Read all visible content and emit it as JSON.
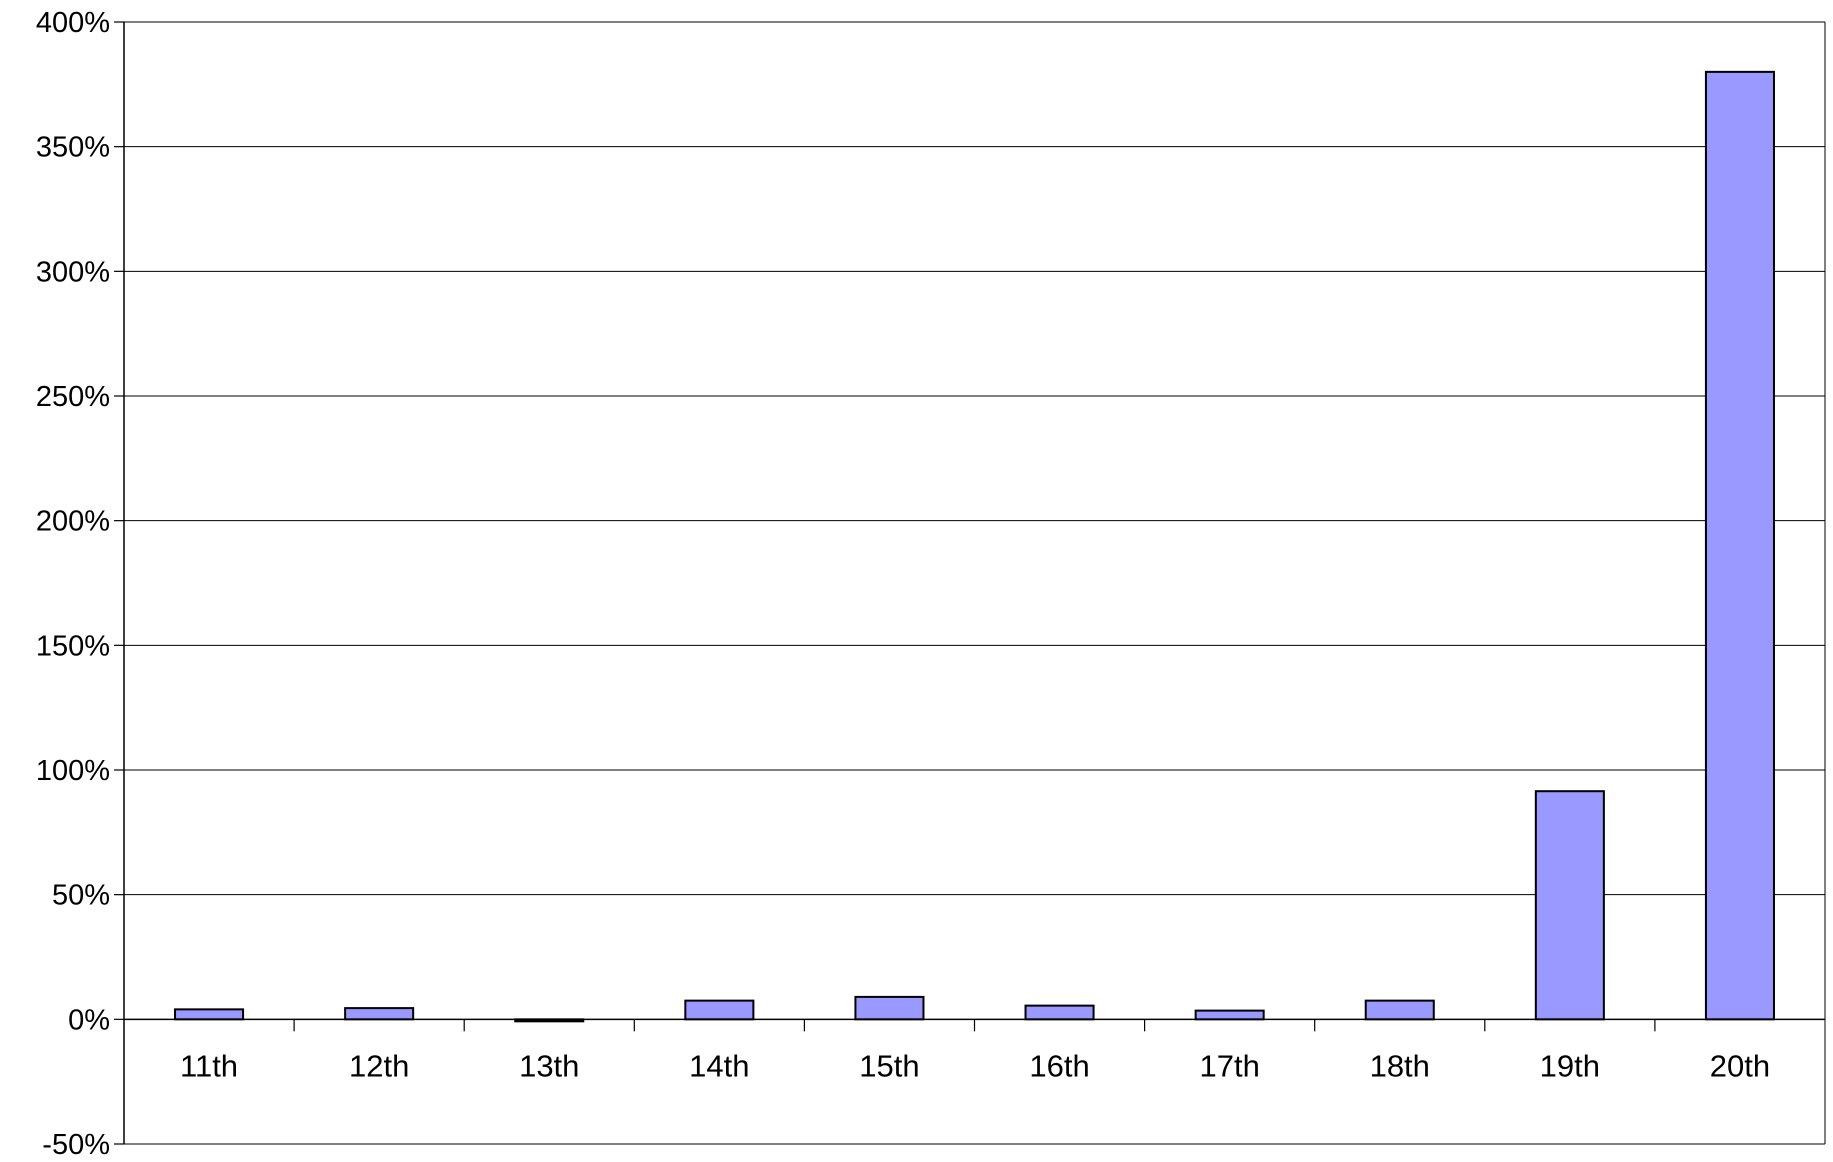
{
  "chart_data": {
    "type": "bar",
    "title": "",
    "xlabel": "",
    "ylabel": "",
    "categories": [
      "11th",
      "12th",
      "13th",
      "14th",
      "15th",
      "16th",
      "17th",
      "18th",
      "19th",
      "20th"
    ],
    "values": [
      4,
      4.5,
      -0.5,
      7.5,
      9,
      5.5,
      3.5,
      7.5,
      91.5,
      380
    ],
    "ylim": [
      -50,
      400
    ],
    "y_ticks": [
      -50,
      0,
      50,
      100,
      150,
      200,
      250,
      300,
      350,
      400
    ],
    "y_tick_labels": [
      "-50%",
      "0%",
      "50%",
      "100%",
      "150%",
      "200%",
      "250%",
      "300%",
      "350%",
      "400%"
    ],
    "grid": true,
    "legend": "none",
    "colors": {
      "bar_fill": "#9999ff",
      "bar_stroke": "#000000",
      "grid": "#000000"
    }
  }
}
